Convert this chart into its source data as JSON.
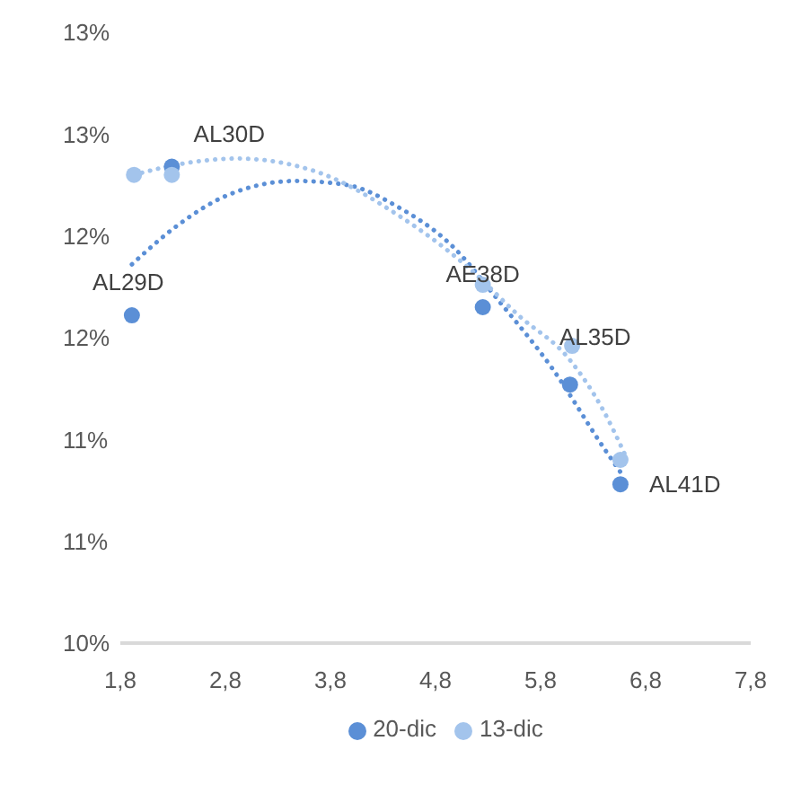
{
  "chart_data": {
    "type": "scatter",
    "series": [
      {
        "name": "20-dic",
        "color": "#5b8fd6",
        "x": [
          1.91,
          2.29,
          5.25,
          6.08,
          6.56
        ],
        "values": [
          11.61,
          12.34,
          11.65,
          11.27,
          10.78
        ]
      },
      {
        "name": "13-dic",
        "color": "#a3c4ec",
        "x": [
          1.93,
          2.29,
          5.25,
          6.1,
          6.56
        ],
        "values": [
          12.3,
          12.3,
          11.76,
          11.46,
          10.9
        ]
      },
      {
        "type": "line",
        "color": "#5b8fd6",
        "line_style": "dotted",
        "marker": "none",
        "x": [
          1.91,
          2.34,
          2.82,
          3.47,
          3.96,
          4.45,
          4.94,
          5.42,
          5.91,
          6.4,
          6.56
        ],
        "values": [
          11.86,
          12.05,
          12.2,
          12.27,
          12.25,
          12.14,
          11.96,
          11.67,
          11.35,
          10.96,
          10.84
        ]
      },
      {
        "type": "line",
        "color": "#a3c4ec",
        "line_style": "dotted",
        "marker": "none",
        "x": [
          1.93,
          2.34,
          2.91,
          3.64,
          4.45,
          5.1,
          5.59,
          6.08,
          6.4,
          6.6
        ],
        "values": [
          12.3,
          12.35,
          12.38,
          12.32,
          12.1,
          11.85,
          11.61,
          11.39,
          11.14,
          10.93
        ]
      }
    ],
    "annotations": [
      {
        "text": "AL29D",
        "x": 1.91,
        "y": 11.61
      },
      {
        "text": "AL30D",
        "x": 2.29,
        "y": 12.34
      },
      {
        "text": "AE38D",
        "x": 5.25,
        "y": 11.65
      },
      {
        "text": "AL35D",
        "x": 6.08,
        "y": 11.27
      },
      {
        "text": "AL41D",
        "x": 6.56,
        "y": 10.78
      }
    ],
    "xlim": [
      1.8,
      7.8
    ],
    "xticks": [
      {
        "value": 1.8,
        "label": "1,8"
      },
      {
        "value": 2.8,
        "label": "2,8"
      },
      {
        "value": 3.8,
        "label": "3,8"
      },
      {
        "value": 4.8,
        "label": "4,8"
      },
      {
        "value": 5.8,
        "label": "5,8"
      },
      {
        "value": 6.8,
        "label": "6,8"
      },
      {
        "value": 7.8,
        "label": "7,8"
      }
    ],
    "ylim": [
      10,
      13
    ],
    "yticks": [
      {
        "value": 10,
        "label": "10%"
      },
      {
        "value": 10.5,
        "label": "11%"
      },
      {
        "value": 11,
        "label": "11%"
      },
      {
        "value": 11.5,
        "label": "12%"
      },
      {
        "value": 12,
        "label": "12%"
      },
      {
        "value": 12.5,
        "label": "13%"
      },
      {
        "value": 13,
        "label": "13%"
      }
    ],
    "marker": "circle",
    "grid": false,
    "legend": "bottom"
  }
}
